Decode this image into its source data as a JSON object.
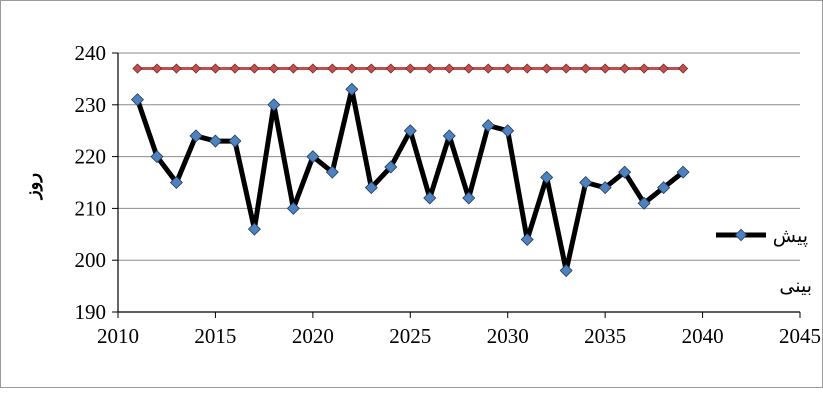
{
  "chart_data": {
    "type": "line",
    "xlabel": "",
    "ylabel": "روز",
    "xlim": [
      2010,
      2045
    ],
    "ylim": [
      190,
      240
    ],
    "x_ticks": [
      2010,
      2015,
      2020,
      2025,
      2030,
      2035,
      2040,
      2045
    ],
    "y_ticks": [
      190,
      200,
      210,
      220,
      230,
      240
    ],
    "grid": true,
    "legend_position": "right",
    "series": [
      {
        "name": "پیش بینی",
        "name_line1": "پیش",
        "name_line2": "بینی",
        "color": "#000000",
        "marker_color": "#4f81bd",
        "x": [
          2011,
          2012,
          2013,
          2014,
          2015,
          2016,
          2017,
          2018,
          2019,
          2020,
          2021,
          2022,
          2023,
          2024,
          2025,
          2026,
          2027,
          2028,
          2029,
          2030,
          2031,
          2032,
          2033,
          2034,
          2035,
          2036,
          2037,
          2038,
          2039
        ],
        "values": [
          231,
          220,
          215,
          224,
          223,
          223,
          206,
          230,
          210,
          220,
          217,
          233,
          214,
          218,
          225,
          212,
          224,
          212,
          226,
          225,
          204,
          216,
          198,
          215,
          214,
          217,
          211,
          214,
          217
        ]
      },
      {
        "name": "",
        "color": "#c0504d",
        "marker_color": "#c0504d",
        "x": [
          2011,
          2012,
          2013,
          2014,
          2015,
          2016,
          2017,
          2018,
          2019,
          2020,
          2021,
          2022,
          2023,
          2024,
          2025,
          2026,
          2027,
          2028,
          2029,
          2030,
          2031,
          2032,
          2033,
          2034,
          2035,
          2036,
          2037,
          2038,
          2039
        ],
        "values": [
          237,
          237,
          237,
          237,
          237,
          237,
          237,
          237,
          237,
          237,
          237,
          237,
          237,
          237,
          237,
          237,
          237,
          237,
          237,
          237,
          237,
          237,
          237,
          237,
          237,
          237,
          237,
          237,
          237
        ]
      }
    ]
  }
}
